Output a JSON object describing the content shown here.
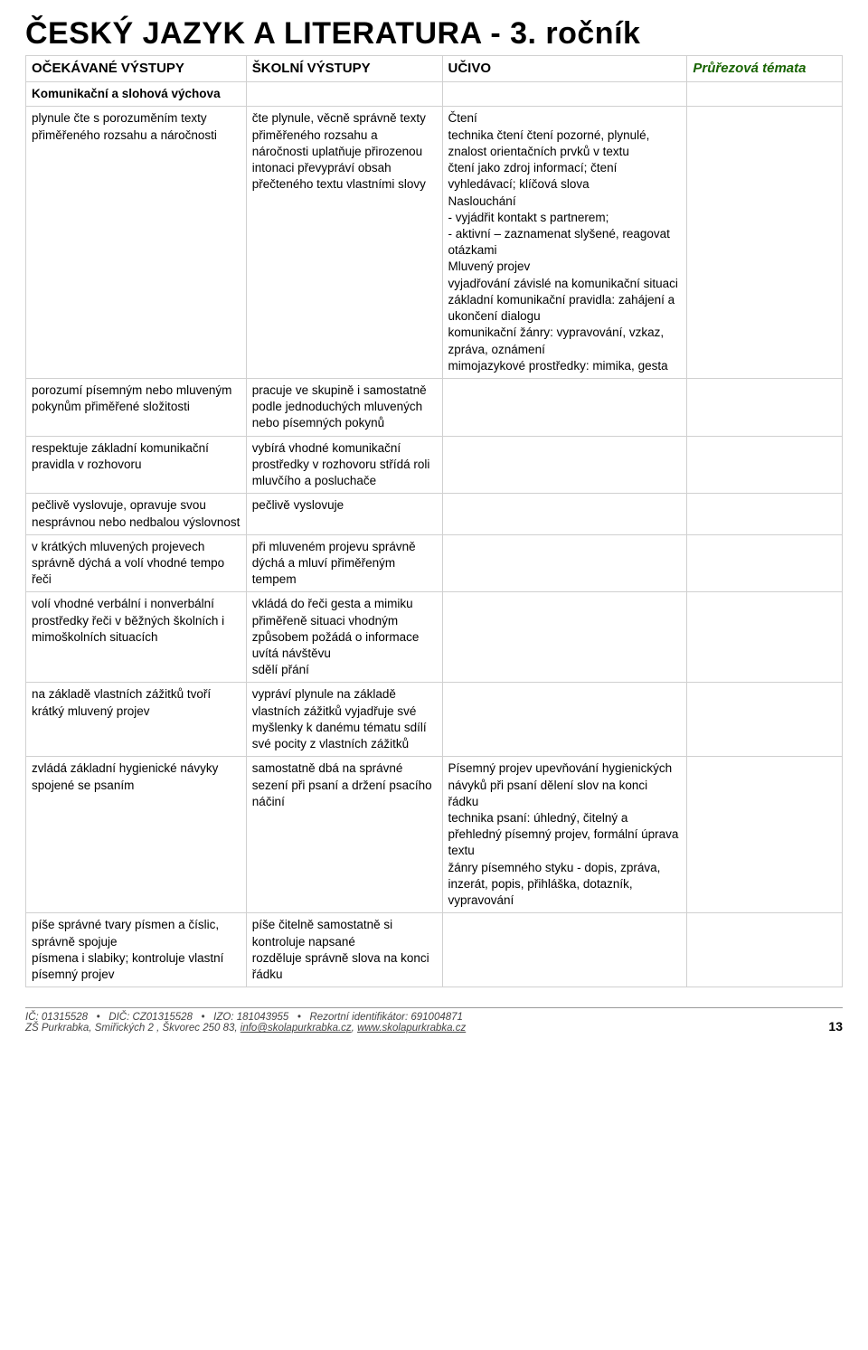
{
  "title": "ČESKÝ JAZYK A LITERATURA - 3. ročník",
  "headers": {
    "col1": "OČEKÁVANÉ VÝSTUPY",
    "col2": "ŠKOLNÍ VÝSTUPY",
    "col3": "UČIVO",
    "col4": "Průřezová témata"
  },
  "section": "Komunikační a slohová výchova",
  "rows": [
    {
      "c1": "plynule čte s porozuměním texty přiměřeného rozsahu a náročnosti",
      "c2": "čte plynule, věcně správně texty přiměřeného rozsahu a náročnosti uplatňuje přirozenou intonaci převypráví obsah přečteného textu vlastními slovy",
      "c3": "Čtení\ntechnika čtení čtení pozorné, plynulé, znalost orientačních prvků v textu\nčtení jako zdroj informací; čtení vyhledávací; klíčová slova\nNaslouchání\n- vyjádřit kontakt s partnerem;\n- aktivní – zaznamenat slyšené, reagovat otázkami\nMluvený projev\nvyjadřování závislé na komunikační situaci\nzákladní komunikační pravidla: zahájení a ukončení dialogu\nkomunikační žánry: vypravování, vzkaz, zpráva, oznámení\nmimojazykové prostředky: mimika, gesta",
      "c4": ""
    },
    {
      "c1": "porozumí písemným nebo mluveným pokynům přiměřené složitosti",
      "c2": "pracuje ve skupině i samostatně podle jednoduchých mluvených nebo písemných pokynů",
      "c3": "",
      "c4": ""
    },
    {
      "c1": "respektuje základní komunikační pravidla v rozhovoru",
      "c2": "vybírá vhodné komunikační prostředky v rozhovoru střídá roli mluvčího a posluchače",
      "c3": "",
      "c4": ""
    },
    {
      "c1": "pečlivě vyslovuje, opravuje svou nesprávnou nebo nedbalou výslovnost",
      "c2": "pečlivě vyslovuje",
      "c3": "",
      "c4": ""
    },
    {
      "c1": "v krátkých mluvených projevech správně dýchá a volí vhodné tempo řeči",
      "c2": "při mluveném projevu správně dýchá a mluví přiměřeným tempem",
      "c3": "",
      "c4": ""
    },
    {
      "c1": "volí vhodné verbální i nonverbální prostředky řeči v běžných školních i mimoškolních situacích",
      "c2": "vkládá do řeči gesta a mimiku přiměřeně situaci vhodným způsobem požádá o informace\nuvítá návštěvu\nsdělí přání",
      "c3": "",
      "c4": ""
    },
    {
      "c1": "na základě vlastních zážitků tvoří krátký mluvený projev",
      "c2": "vypráví plynule na základě vlastních zážitků vyjadřuje své myšlenky k danému tématu sdílí své pocity z vlastních zážitků",
      "c3": "",
      "c4": ""
    },
    {
      "c1": "zvládá základní hygienické návyky spojené se psaním",
      "c2": "samostatně dbá na správné sezení při psaní a držení psacího náčiní",
      "c3": "Písemný projev upevňování hygienických návyků při psaní dělení slov na konci řádku\ntechnika psaní: úhledný, čitelný a přehledný písemný projev, formální úprava textu\nžánry písemného styku - dopis, zpráva, inzerát, popis, přihláška, dotazník, vypravování",
      "c4": ""
    },
    {
      "c1": "píše správné tvary písmen a číslic, správně spojuje\npísmena i slabiky; kontroluje vlastní písemný projev",
      "c2": "píše čitelně samostatně si kontroluje napsané\nrozděluje správně slova na konci řádku",
      "c3": "",
      "c4": ""
    }
  ],
  "footer": {
    "line1_a": "IČ: 01315528",
    "line1_b": "DIČ: CZ01315528",
    "line1_c": "IZO: 181043955",
    "line1_d": "Rezortní identifikátor: 691004871",
    "line2_a": "ZŠ Purkrabka, Smiřických 2 , Škvorec 250 83, ",
    "line2_email": "info@skolapurkrabka.cz",
    "line2_sep": ", ",
    "line2_url": "www.skolapurkrabka.cz",
    "page": "13"
  }
}
